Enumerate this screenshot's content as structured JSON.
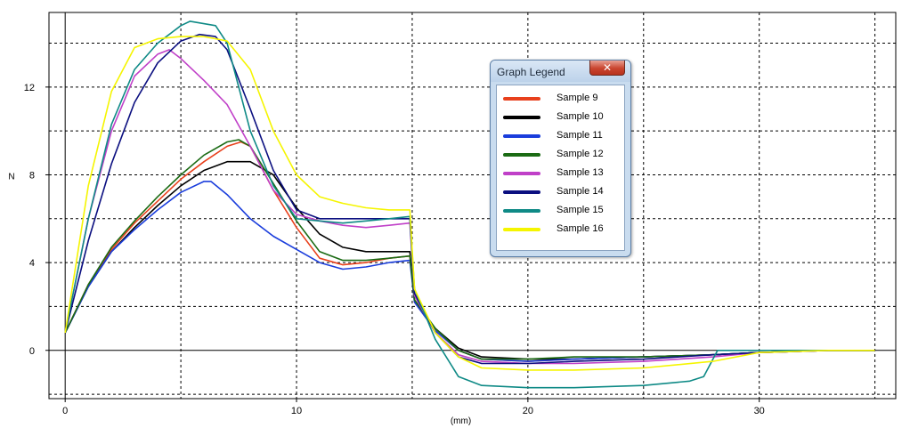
{
  "chart_data": {
    "type": "line",
    "title": "",
    "xlabel": "(mm)",
    "ylabel": "N",
    "xlim": [
      -0.7,
      35.9
    ],
    "ylim": [
      -2.2,
      15.4
    ],
    "x_ticks": [
      0,
      10,
      20,
      30
    ],
    "y_ticks": [
      0,
      4,
      8,
      12
    ],
    "grid": true,
    "legend_placement": "floating window, top-center",
    "series": [
      {
        "name": "Sample 9",
        "color": "#e8401c",
        "x": [
          0,
          1,
          2,
          3,
          4,
          5,
          6,
          7,
          7.6,
          8,
          9,
          10,
          11,
          12,
          13,
          14,
          14.9,
          15.1,
          16,
          17,
          18,
          20,
          22,
          25,
          28,
          30,
          33,
          35
        ],
        "y": [
          0.8,
          3.0,
          4.6,
          5.8,
          6.8,
          7.8,
          8.6,
          9.3,
          9.5,
          9.3,
          7.3,
          5.6,
          4.2,
          3.9,
          4.0,
          4.2,
          4.3,
          2.2,
          0.9,
          0.0,
          -0.4,
          -0.5,
          -0.4,
          -0.3,
          -0.2,
          -0.1,
          0.0,
          0.0
        ]
      },
      {
        "name": "Sample 10",
        "color": "#000000",
        "x": [
          0,
          1,
          2,
          3,
          4,
          5,
          6,
          7,
          8,
          9,
          10,
          11,
          12,
          13,
          14,
          14.9,
          15.1,
          16,
          17,
          18,
          20,
          22,
          25,
          28,
          30,
          33,
          35
        ],
        "y": [
          0.8,
          2.9,
          4.5,
          5.6,
          6.6,
          7.5,
          8.2,
          8.6,
          8.6,
          8.0,
          6.5,
          5.3,
          4.7,
          4.5,
          4.5,
          4.5,
          2.3,
          1.0,
          0.1,
          -0.3,
          -0.4,
          -0.4,
          -0.3,
          -0.2,
          -0.1,
          0.0,
          0.0
        ]
      },
      {
        "name": "Sample 11",
        "color": "#1a3ddc",
        "x": [
          0,
          1,
          2,
          3,
          4,
          5,
          6,
          6.3,
          7,
          8,
          9,
          10,
          11,
          12,
          13,
          14,
          14.9,
          15.1,
          16,
          17,
          18,
          20,
          22,
          25,
          28,
          30,
          33,
          35
        ],
        "y": [
          0.8,
          2.9,
          4.5,
          5.5,
          6.4,
          7.2,
          7.7,
          7.7,
          7.1,
          6.0,
          5.2,
          4.6,
          4.0,
          3.7,
          3.8,
          4.0,
          4.1,
          2.2,
          0.9,
          0.0,
          -0.4,
          -0.5,
          -0.4,
          -0.3,
          -0.2,
          -0.1,
          0.0,
          0.0
        ]
      },
      {
        "name": "Sample 12",
        "color": "#1b6b14",
        "x": [
          0,
          1,
          2,
          3,
          4,
          5,
          6,
          7,
          7.5,
          8,
          9,
          10,
          11,
          12,
          13,
          14,
          14.9,
          15.1,
          16,
          17,
          18,
          20,
          22,
          25,
          28,
          30,
          33,
          35
        ],
        "y": [
          0.8,
          3.0,
          4.7,
          5.9,
          7.0,
          8.0,
          8.9,
          9.5,
          9.6,
          9.3,
          7.6,
          5.9,
          4.5,
          4.1,
          4.1,
          4.2,
          4.3,
          2.3,
          1.0,
          0.0,
          -0.4,
          -0.4,
          -0.3,
          -0.3,
          -0.2,
          -0.1,
          0.0,
          0.0
        ]
      },
      {
        "name": "Sample 13",
        "color": "#c040c8",
        "x": [
          0,
          1,
          2,
          3,
          4,
          4.5,
          5,
          6,
          7,
          8,
          9,
          10,
          11,
          12,
          13,
          14,
          14.9,
          15.1,
          16,
          17,
          18,
          20,
          22,
          25,
          28,
          30,
          33,
          35
        ],
        "y": [
          0.8,
          6.0,
          10.0,
          12.5,
          13.5,
          13.7,
          13.3,
          12.3,
          11.2,
          9.3,
          7.3,
          6.2,
          5.9,
          5.7,
          5.6,
          5.7,
          5.8,
          2.5,
          0.8,
          -0.2,
          -0.5,
          -0.6,
          -0.6,
          -0.5,
          -0.3,
          -0.1,
          0.0,
          0.0
        ]
      },
      {
        "name": "Sample 14",
        "color": "#0b0f80",
        "x": [
          0,
          1,
          2,
          3,
          4,
          5,
          5.8,
          6.5,
          7,
          8,
          9,
          10,
          11,
          12,
          13,
          14,
          14.9,
          15.1,
          16,
          17,
          18,
          20,
          22,
          25,
          28,
          30,
          33,
          35
        ],
        "y": [
          0.8,
          5.0,
          8.5,
          11.3,
          13.1,
          14.1,
          14.4,
          14.3,
          13.7,
          11.0,
          8.2,
          6.4,
          6.0,
          6.0,
          6.0,
          6.0,
          6.0,
          2.6,
          0.8,
          -0.3,
          -0.6,
          -0.6,
          -0.5,
          -0.4,
          -0.2,
          -0.1,
          0.0,
          0.0
        ]
      },
      {
        "name": "Sample 15",
        "color": "#0f8a86",
        "x": [
          0,
          1,
          2,
          3,
          4,
          5,
          5.4,
          6.5,
          7,
          7.5,
          8,
          9,
          10,
          11,
          12,
          13,
          14,
          14.9,
          15.1,
          16,
          17,
          18,
          20,
          22,
          25,
          27,
          27.6,
          28.2,
          30,
          33,
          35
        ],
        "y": [
          0.8,
          6.0,
          10.3,
          12.8,
          14.0,
          14.8,
          15.0,
          14.8,
          14.0,
          12.0,
          10.0,
          7.5,
          6.0,
          5.9,
          5.8,
          5.9,
          6.0,
          6.1,
          2.8,
          0.5,
          -1.2,
          -1.6,
          -1.7,
          -1.7,
          -1.6,
          -1.4,
          -1.2,
          0.0,
          0.0,
          0.0,
          0.0
        ]
      },
      {
        "name": "Sample 16",
        "color": "#f5f500",
        "x": [
          0,
          1,
          2,
          3,
          4,
          5,
          6,
          7,
          8,
          9,
          10,
          11,
          12,
          13,
          14,
          14.9,
          15.1,
          16,
          17,
          18,
          20,
          22,
          25,
          28,
          30,
          33,
          35
        ],
        "y": [
          0.8,
          7.5,
          11.8,
          13.8,
          14.2,
          14.3,
          14.3,
          14.1,
          12.8,
          10.0,
          8.0,
          7.0,
          6.7,
          6.5,
          6.4,
          6.4,
          2.8,
          0.8,
          -0.3,
          -0.8,
          -0.9,
          -0.9,
          -0.8,
          -0.5,
          -0.1,
          0.0,
          0.0
        ]
      }
    ]
  },
  "legend": {
    "title": "Graph Legend",
    "close_glyph": "✕"
  }
}
